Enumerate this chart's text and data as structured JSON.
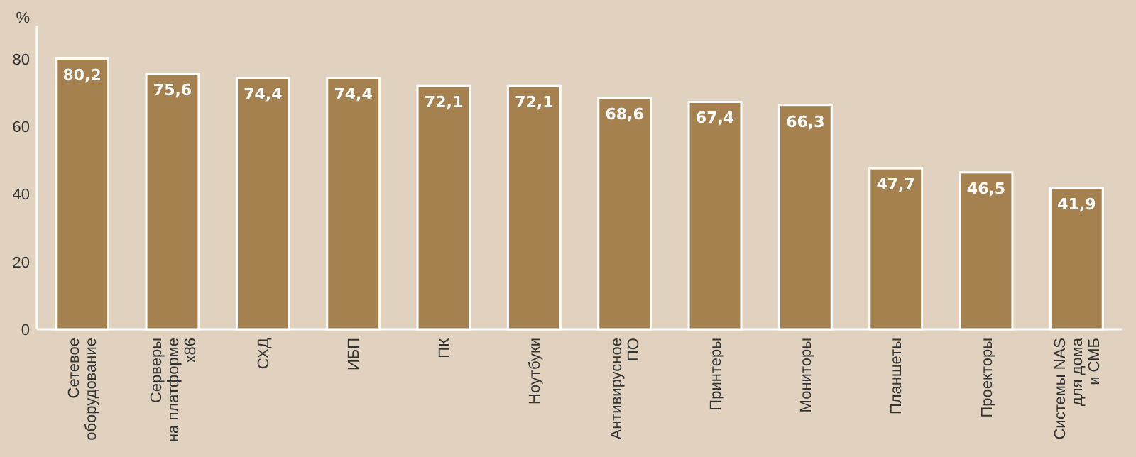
{
  "chart_data": {
    "type": "bar",
    "ylabel": "%",
    "categories": [
      "Сетевое\nоборудование",
      "Серверы\nна платформе\nx86",
      "СХД",
      "ИБП",
      "ПК",
      "Ноутбуки",
      "Антивирусное\nПО",
      "Принтеры",
      "Мониторы",
      "Планшеты",
      "Проекторы",
      "Системы NAS\nдля дома\nи СМБ"
    ],
    "values": [
      80.2,
      75.6,
      74.4,
      74.4,
      72.1,
      72.1,
      68.6,
      67.4,
      66.3,
      47.7,
      46.5,
      41.9
    ],
    "value_labels": [
      "80,2",
      "75,6",
      "74,4",
      "74,4",
      "72,1",
      "72,1",
      "68,6",
      "67,4",
      "66,3",
      "47,7",
      "46,5",
      "41,9"
    ],
    "color": "#a68150",
    "ylim": [
      0,
      90
    ],
    "yticks": [
      0,
      20,
      40,
      60,
      80
    ],
    "grid": false
  }
}
